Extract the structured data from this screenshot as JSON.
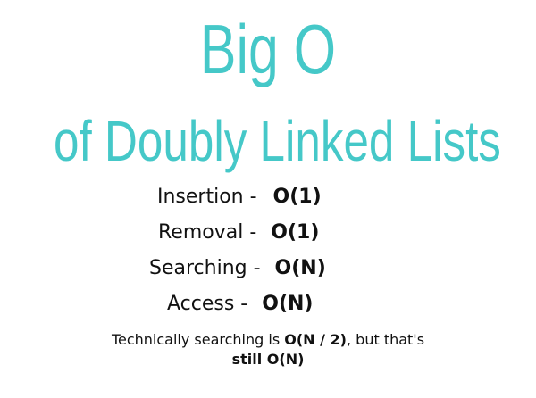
{
  "title": {
    "line1": "Big O",
    "line2": "of Doubly Linked Lists"
  },
  "complexities": [
    {
      "operation": "Insertion -",
      "value": "O(1)"
    },
    {
      "operation": "Removal -",
      "value": "O(1)"
    },
    {
      "operation": "Searching -",
      "value": "O(N)"
    },
    {
      "operation": "Access -",
      "value": "O(N)"
    }
  ],
  "note": {
    "prefix": "Technically searching is ",
    "highlight": "O(N / 2)",
    "middle": ", but that's",
    "emphasis": "still O(N)"
  },
  "colors": {
    "title": "#45c8c8",
    "text": "#111111"
  }
}
